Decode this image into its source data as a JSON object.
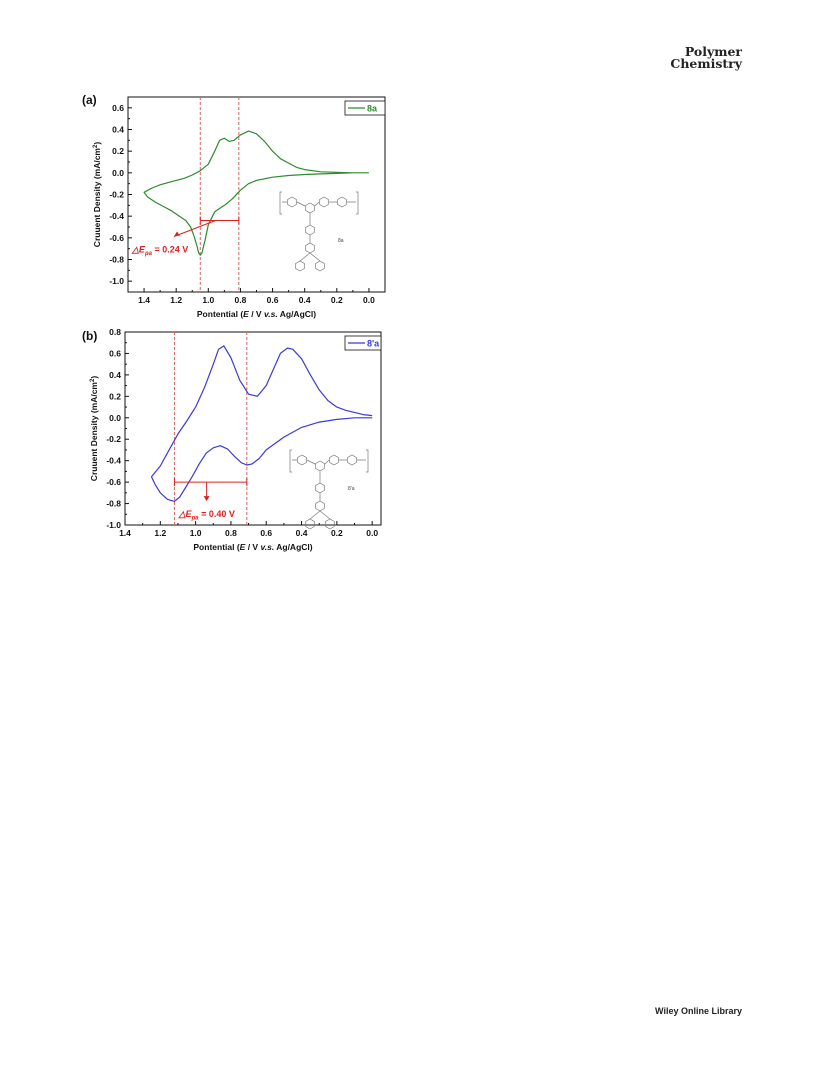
{
  "header": {
    "journal_line1": "Polymer",
    "journal_line2": "Chemistry"
  },
  "footer": {
    "text": "Wiley Online Library"
  },
  "chart_data": [
    {
      "type": "line",
      "panel_label": "(a)",
      "xlabel_parts": [
        "Pontential (",
        "E",
        " / V ",
        "v.s.",
        " Ag/AgCl)"
      ],
      "ylabel": "Cruuent Density (mA/cm",
      "ylabel_sup": "2",
      "ylabel_end": ")",
      "x_reversed": true,
      "xlim": [
        1.5,
        -0.1
      ],
      "ylim": [
        -1.1,
        0.7
      ],
      "xticks": [
        1.4,
        1.2,
        1.0,
        0.8,
        0.6,
        0.4,
        0.2,
        0.0
      ],
      "xtick_labels": [
        "1.4",
        "1.2",
        "1.0",
        "0.8",
        "0.6",
        "0.4",
        "0.2",
        "0.0"
      ],
      "yticks": [
        0.6,
        0.4,
        0.2,
        0.0,
        -0.2,
        -0.4,
        -0.6,
        -0.8,
        -1.0
      ],
      "ytick_labels": [
        "0.6",
        "0.4",
        "0.2",
        "0.0",
        "-0.2",
        "-0.4",
        "-0.6",
        "-0.8",
        "-1.0"
      ],
      "grid": false,
      "legend_position": "top-right",
      "series": [
        {
          "name": "8a",
          "color": "#2e8b2e",
          "x": [
            0.0,
            0.1,
            0.2,
            0.3,
            0.4,
            0.45,
            0.5,
            0.55,
            0.6,
            0.65,
            0.7,
            0.75,
            0.8,
            0.84,
            0.87,
            0.9,
            0.93,
            0.96,
            1.0,
            1.05,
            1.1,
            1.15,
            1.2,
            1.25,
            1.3,
            1.35,
            1.4,
            1.38,
            1.33,
            1.28,
            1.23,
            1.18,
            1.14,
            1.11,
            1.09,
            1.07,
            1.06,
            1.05,
            1.04,
            1.02,
            1.0,
            0.96,
            0.9,
            0.85,
            0.8,
            0.75,
            0.7,
            0.6,
            0.5,
            0.4,
            0.3,
            0.2,
            0.1,
            0.0
          ],
          "y": [
            0.0,
            0.0,
            0.005,
            0.01,
            0.03,
            0.05,
            0.09,
            0.13,
            0.2,
            0.29,
            0.36,
            0.385,
            0.35,
            0.3,
            0.29,
            0.32,
            0.3,
            0.2,
            0.08,
            0.02,
            -0.02,
            -0.05,
            -0.07,
            -0.09,
            -0.11,
            -0.14,
            -0.18,
            -0.22,
            -0.27,
            -0.31,
            -0.35,
            -0.4,
            -0.44,
            -0.5,
            -0.58,
            -0.68,
            -0.74,
            -0.76,
            -0.74,
            -0.62,
            -0.48,
            -0.36,
            -0.3,
            -0.24,
            -0.16,
            -0.1,
            -0.07,
            -0.04,
            -0.025,
            -0.015,
            -0.01,
            -0.005,
            0.0,
            0.0
          ]
        }
      ],
      "annotation": {
        "delta_sym": "△E",
        "sub": "pa",
        "text": " = 0.24 V",
        "y": -0.44,
        "x_from": 1.05,
        "x_to": 0.81
      },
      "dashed_lines_x": [
        1.05,
        0.81
      ],
      "structure_label": "8a"
    },
    {
      "type": "line",
      "panel_label": "(b)",
      "xlabel_parts": [
        "Pontential (",
        "E",
        " / V ",
        "v.s.",
        " Ag/AgCl)"
      ],
      "ylabel": "Cruuent Density (mA/cm",
      "ylabel_sup": "2",
      "ylabel_end": ")",
      "x_reversed": true,
      "xlim": [
        1.4,
        -0.05
      ],
      "ylim": [
        -1.0,
        0.8
      ],
      "xticks": [
        1.4,
        1.2,
        1.0,
        0.8,
        0.6,
        0.4,
        0.2,
        0.0
      ],
      "xtick_labels": [
        "1.4",
        "1.2",
        "1.0",
        "0.8",
        "0.6",
        "0.4",
        "0.2",
        "0.0"
      ],
      "yticks": [
        0.8,
        0.6,
        0.4,
        0.2,
        0.0,
        -0.2,
        -0.4,
        -0.6,
        -0.8,
        -1.0
      ],
      "ytick_labels": [
        "0.8",
        "0.6",
        "0.4",
        "0.2",
        "0.0",
        "-0.2",
        "-0.4",
        "-0.6",
        "-0.8",
        "-1.0"
      ],
      "grid": false,
      "legend_position": "top-right",
      "series": [
        {
          "name": "8'a",
          "color": "#3a3ad8",
          "x": [
            0.0,
            0.05,
            0.1,
            0.15,
            0.2,
            0.25,
            0.3,
            0.35,
            0.4,
            0.45,
            0.48,
            0.52,
            0.56,
            0.6,
            0.65,
            0.7,
            0.75,
            0.8,
            0.84,
            0.87,
            0.9,
            0.95,
            1.0,
            1.05,
            1.1,
            1.15,
            1.2,
            1.25,
            1.23,
            1.2,
            1.16,
            1.12,
            1.09,
            1.06,
            1.02,
            0.98,
            0.94,
            0.9,
            0.86,
            0.82,
            0.78,
            0.74,
            0.71,
            0.68,
            0.64,
            0.6,
            0.5,
            0.4,
            0.3,
            0.2,
            0.1,
            0.0
          ],
          "y": [
            0.02,
            0.03,
            0.05,
            0.07,
            0.1,
            0.16,
            0.26,
            0.4,
            0.55,
            0.64,
            0.65,
            0.6,
            0.45,
            0.3,
            0.2,
            0.22,
            0.35,
            0.56,
            0.67,
            0.64,
            0.5,
            0.28,
            0.1,
            -0.03,
            -0.15,
            -0.3,
            -0.45,
            -0.55,
            -0.62,
            -0.7,
            -0.76,
            -0.78,
            -0.74,
            -0.66,
            -0.55,
            -0.43,
            -0.33,
            -0.28,
            -0.26,
            -0.29,
            -0.36,
            -0.42,
            -0.44,
            -0.43,
            -0.38,
            -0.3,
            -0.18,
            -0.09,
            -0.04,
            -0.015,
            0.0,
            0.0
          ]
        }
      ],
      "annotation": {
        "delta_sym": "△E",
        "sub": "pa",
        "text": " = 0.40 V",
        "y": -0.6,
        "x_from": 1.12,
        "x_to": 0.71
      },
      "dashed_lines_x": [
        1.12,
        0.71
      ],
      "structure_label": "8'a"
    }
  ]
}
